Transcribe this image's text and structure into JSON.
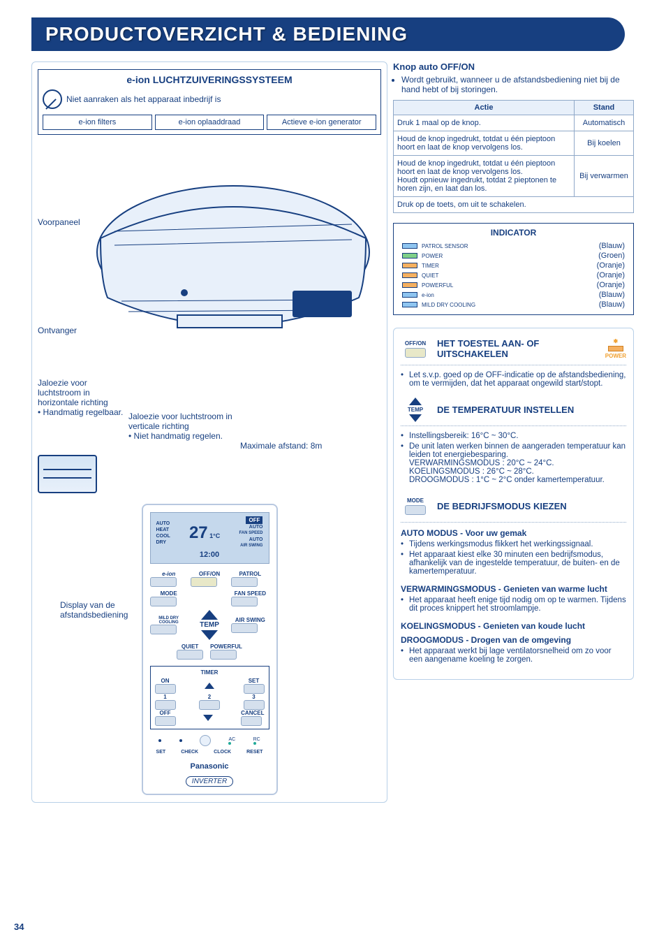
{
  "page_number": "34",
  "banner_title": "PRODUCTOVERZICHT & BEDIENING",
  "eion": {
    "title": "e-ion LUCHTZUIVERINGSSYSTEEM",
    "warning": "Niet aanraken als het apparaat inbedrijf is",
    "labels": [
      "e-ion filters",
      "e-ion oplaaddraad",
      "Actieve e-ion generator"
    ]
  },
  "unit_labels": {
    "voorpaneel": "Voorpaneel",
    "ontvanger": "Ontvanger",
    "jaloezie_h_title": "Jaloezie voor luchtstroom in horizontale richting",
    "jaloezie_h_bullet": "Handmatig regelbaar.",
    "jaloezie_v_title": "Jaloezie voor luchtstroom in verticale richting",
    "jaloezie_v_bullet": "Niet handmatig regelen.",
    "max_dist": "Maximale afstand: 8m",
    "display_ptr": "Display van de afstandsbediening"
  },
  "remote": {
    "disp_auto": "AUTO",
    "disp_heat": "HEAT",
    "disp_cool": "COOL",
    "disp_dry": "DRY",
    "disp_temp": "27",
    "disp_unit": "1°C",
    "disp_off": "OFF",
    "disp_auto2": "AUTO",
    "disp_fan": "FAN SPEED",
    "disp_air": "AIR SWING",
    "disp_time": "12:00",
    "btn_eion": "e-ion",
    "btn_offon": "OFF/ON",
    "btn_patrol": "PATROL",
    "btn_mode": "MODE",
    "btn_fanspeed": "FAN SPEED",
    "btn_milddry": "MILD DRY COOLING",
    "btn_temp": "TEMP",
    "btn_airswing": "AIR SWING",
    "btn_quiet": "QUIET",
    "btn_powerful": "POWERFUL",
    "timer_title": "TIMER",
    "btn_on": "ON",
    "btn_set": "SET",
    "btn_1": "1",
    "btn_2": "2",
    "btn_3": "3",
    "btn_off": "OFF",
    "btn_cancel": "CANCEL",
    "btn_ac": "AC",
    "btn_rc": "RC",
    "btn_setcheck": "SET",
    "btn_check": "CHECK",
    "btn_clock": "CLOCK",
    "btn_reset": "RESET",
    "brand": "Panasonic",
    "inverter": "INVERTER"
  },
  "knop": {
    "title": "Knop auto OFF/ON",
    "bullet": "Wordt gebruikt, wanneer u de afstandsbediening niet bij de hand hebt of bij storingen.",
    "th_actie": "Actie",
    "th_stand": "Stand",
    "rows": [
      {
        "actie": "Druk 1 maal op de knop.",
        "stand": "Automatisch"
      },
      {
        "actie": "Houd de knop ingedrukt, totdat u één pieptoon hoort en laat de knop vervolgens los.",
        "stand": "Bij koelen"
      },
      {
        "actie": "Houd de knop ingedrukt, totdat u één pieptoon hoort en laat de knop vervolgens los.\nHoudt opnieuw ingedrukt, totdat 2 pieptonen te horen zijn, en laat dan los.",
        "stand": "Bij verwarmen"
      }
    ],
    "row_off": "Druk op de toets, om uit te schakelen."
  },
  "indicator": {
    "title": "INDICATOR",
    "rows": [
      {
        "swatch": "blue",
        "label": "PATROL SENSOR",
        "color": "(Blauw)"
      },
      {
        "swatch": "green",
        "label": "POWER",
        "color": "(Groen)"
      },
      {
        "swatch": "orange",
        "label": "TIMER",
        "color": "(Oranje)"
      },
      {
        "swatch": "orange",
        "label": "QUIET",
        "color": "(Oranje)"
      },
      {
        "swatch": "orange",
        "label": "POWERFUL",
        "color": "(Oranje)"
      },
      {
        "swatch": "blue",
        "label": "e-ion",
        "color": "(Blauw)"
      },
      {
        "swatch": "blue",
        "label": "MILD DRY COOLING",
        "color": "(Blauw)"
      }
    ]
  },
  "funcs": {
    "f1_icon": "OFF/ON",
    "f1_title": "HET TOESTEL AAN- OF UITSCHAKELEN",
    "f1_power": "POWER",
    "f1_b1": "Let s.v.p. goed op de OFF-indicatie op de afstandsbediening, om te vermijden, dat het apparaat ongewild start/stopt.",
    "f2_icon": "TEMP",
    "f2_title": "DE TEMPERATUUR INSTELLEN",
    "f2_b1": "Instellingsbereik: 16°C ~ 30°C.",
    "f2_b2": "De unit laten werken binnen de aangeraden temperatuur kan leiden tot energiebesparing.",
    "f2_b3": "VERWARMINGSMODUS : 20°C ~ 24°C.",
    "f2_b4": "KOELINGSMODUS : 26°C ~ 28°C.",
    "f2_b5": "DROOGMODUS : 1°C ~ 2°C onder kamertemperatuur.",
    "f3_icon": "MODE",
    "f3_title": "DE BEDRIJFSMODUS KIEZEN",
    "f3_auto_t": "AUTO MODUS - Voor uw gemak",
    "f3_auto_b1": "Tijdens werkingsmodus flikkert het werkingssignaal.",
    "f3_auto_b2": "Het apparaat kiest elke 30 minuten een bedrijfsmodus, afhankelijk van de ingestelde temperatuur, de buiten- en de kamertemperatuur.",
    "f3_verw_t": "VERWARMINGSMODUS - Genieten van warme lucht",
    "f3_verw_b1": "Het apparaat heeft enige tijd nodig om op te warmen. Tijdens dit proces knippert het stroomlampje.",
    "f3_koel_t": "KOELINGSMODUS - Genieten van koude lucht",
    "f3_droog_t": "DROOGMODUS - Drogen van de omgeving",
    "f3_droog_b1": "Het apparaat werkt bij lage ventilatorsnelheid om zo voor een aangename koeling te zorgen."
  }
}
